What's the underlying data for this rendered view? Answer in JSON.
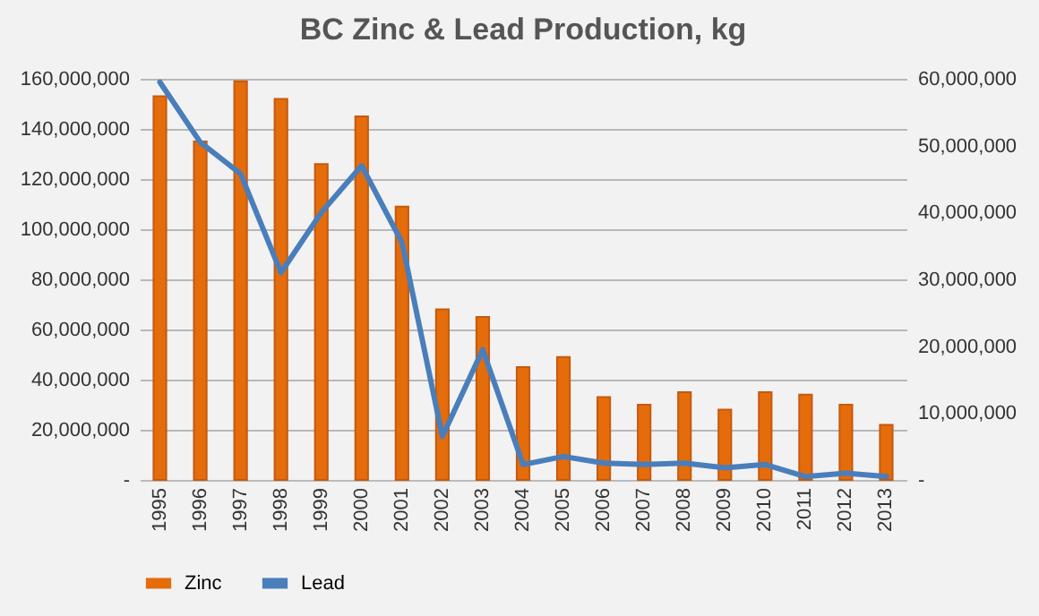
{
  "chart_data": {
    "type": "bar",
    "title": "BC Zinc & Lead Production, kg",
    "categories": [
      "1995",
      "1996",
      "1997",
      "1998",
      "1999",
      "2000",
      "2001",
      "2002",
      "2003",
      "2004",
      "2005",
      "2006",
      "2007",
      "2008",
      "2009",
      "2010",
      "2011",
      "2012",
      "2013"
    ],
    "series": [
      {
        "name": "Zinc",
        "color": "#e46c0a",
        "values": [
          153000000,
          135000000,
          159000000,
          152000000,
          126000000,
          145000000,
          109000000,
          68000000,
          65000000,
          45000000,
          49000000,
          33000000,
          30000000,
          35000000,
          28000000,
          35000000,
          34000000,
          30000000,
          22000000
        ]
      },
      {
        "name": "Lead",
        "type": "line",
        "axis": "y2",
        "color": "#4a7ebb",
        "values": [
          59500000,
          50500000,
          45800000,
          31000000,
          40000000,
          47000000,
          35500000,
          6500000,
          19500000,
          2300000,
          3500000,
          2500000,
          2300000,
          2500000,
          1800000,
          2300000,
          500000,
          1000000,
          500000
        ]
      }
    ],
    "ylim": [
      0,
      160000000
    ],
    "yticks": [
      {
        "value": 0,
        "label": "-"
      },
      {
        "value": 20000000,
        "label": "20,000,000"
      },
      {
        "value": 40000000,
        "label": "40,000,000"
      },
      {
        "value": 60000000,
        "label": "60,000,000"
      },
      {
        "value": 80000000,
        "label": "80,000,000"
      },
      {
        "value": 100000000,
        "label": "100,000,000"
      },
      {
        "value": 120000000,
        "label": "120,000,000"
      },
      {
        "value": 140000000,
        "label": "140,000,000"
      },
      {
        "value": 160000000,
        "label": "160,000,000"
      }
    ],
    "y2lim": [
      0,
      60000000
    ],
    "y2ticks": [
      {
        "value": 0,
        "label": "-"
      },
      {
        "value": 10000000,
        "label": "10,000,000"
      },
      {
        "value": 20000000,
        "label": "20,000,000"
      },
      {
        "value": 30000000,
        "label": "30,000,000"
      },
      {
        "value": 40000000,
        "label": "40,000,000"
      },
      {
        "value": 50000000,
        "label": "50,000,000"
      },
      {
        "value": 60000000,
        "label": "60,000,000"
      }
    ],
    "grid": "y",
    "legend": "bottom"
  }
}
